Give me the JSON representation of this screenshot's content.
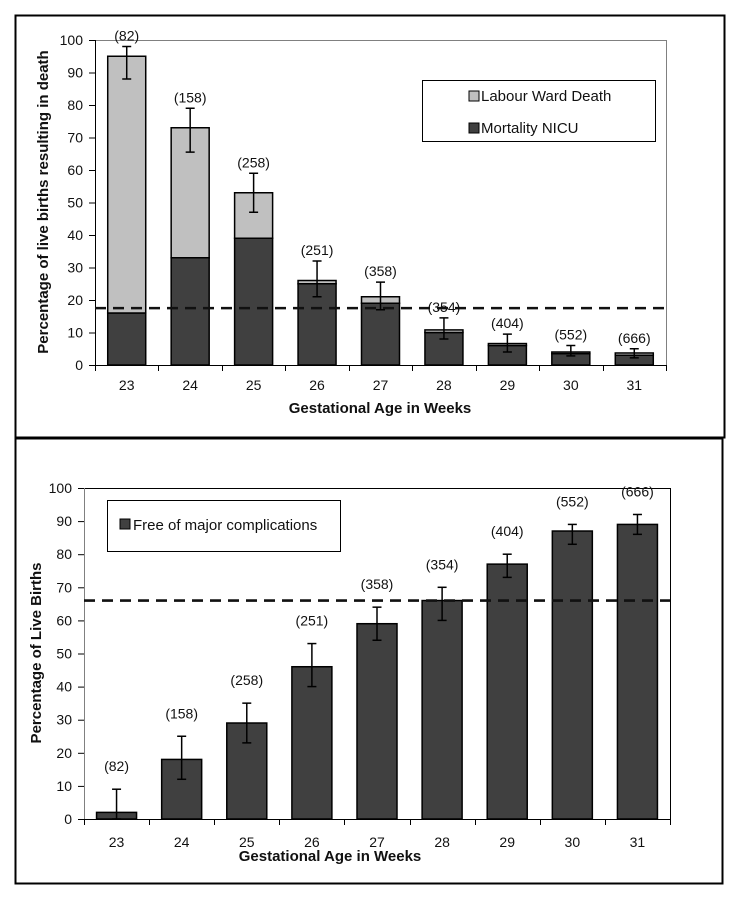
{
  "chart_data": [
    {
      "type": "bar",
      "stacked": true,
      "title": "",
      "xlabel": "Gestational Age in Weeks",
      "ylabel": "Percentage of live births resulting in death",
      "ylim": [
        0,
        100
      ],
      "yticks": [
        0,
        10,
        20,
        30,
        40,
        50,
        60,
        70,
        80,
        90,
        100
      ],
      "categories": [
        "23",
        "24",
        "25",
        "26",
        "27",
        "28",
        "29",
        "30",
        "31"
      ],
      "n_labels": [
        "(82)",
        "(158)",
        "(258)",
        "(251)",
        "(358)",
        "(354)",
        "(404)",
        "(552)",
        "(666)"
      ],
      "series": [
        {
          "name": "Mortality NICU",
          "color": "#404040",
          "values": [
            16,
            33,
            39,
            25,
            19,
            10,
            6,
            3.5,
            3
          ]
        },
        {
          "name": "Labour Ward Death",
          "color": "#c0c0c0",
          "values": [
            79,
            40,
            14,
            1,
            2,
            0.8,
            0.6,
            0.5,
            0.7
          ]
        }
      ],
      "totals": [
        95,
        73,
        53,
        26,
        21,
        10.8,
        6.6,
        4,
        3.7
      ],
      "error_bars": {
        "upper": [
          98,
          79,
          59,
          32,
          25.5,
          14.5,
          9.5,
          6,
          5
        ],
        "lower": [
          88,
          65.5,
          47,
          21,
          17,
          8,
          4,
          2.8,
          2.2
        ]
      },
      "reference_line": {
        "value": 17.5,
        "style": "dashed"
      },
      "legend": {
        "position": "top-right",
        "entries": [
          "Labour Ward Death",
          "Mortality NICU"
        ]
      },
      "grid": false
    },
    {
      "type": "bar",
      "title": "",
      "xlabel": "Gestational Age in Weeks",
      "ylabel": "Percentage of Live Births",
      "ylim": [
        0,
        100
      ],
      "yticks": [
        0,
        10,
        20,
        30,
        40,
        50,
        60,
        70,
        80,
        90,
        100
      ],
      "categories": [
        "23",
        "24",
        "25",
        "26",
        "27",
        "28",
        "29",
        "30",
        "31"
      ],
      "n_labels": [
        "(82)",
        "(158)",
        "(258)",
        "(251)",
        "(358)",
        "(354)",
        "(404)",
        "(552)",
        "(666)"
      ],
      "series": [
        {
          "name": "Free of major complications",
          "color": "#404040",
          "values": [
            2,
            18,
            29,
            46,
            59,
            66,
            77,
            87,
            89
          ]
        }
      ],
      "error_bars": {
        "upper": [
          9,
          25,
          35,
          53,
          64,
          70,
          80,
          89,
          92
        ],
        "lower": [
          0,
          12,
          23,
          40,
          54,
          60,
          73,
          83,
          86
        ]
      },
      "reference_line": {
        "value": 66,
        "style": "dashed"
      },
      "legend": {
        "position": "top-left",
        "entries": [
          "Free of major complications"
        ]
      },
      "grid": false
    }
  ]
}
